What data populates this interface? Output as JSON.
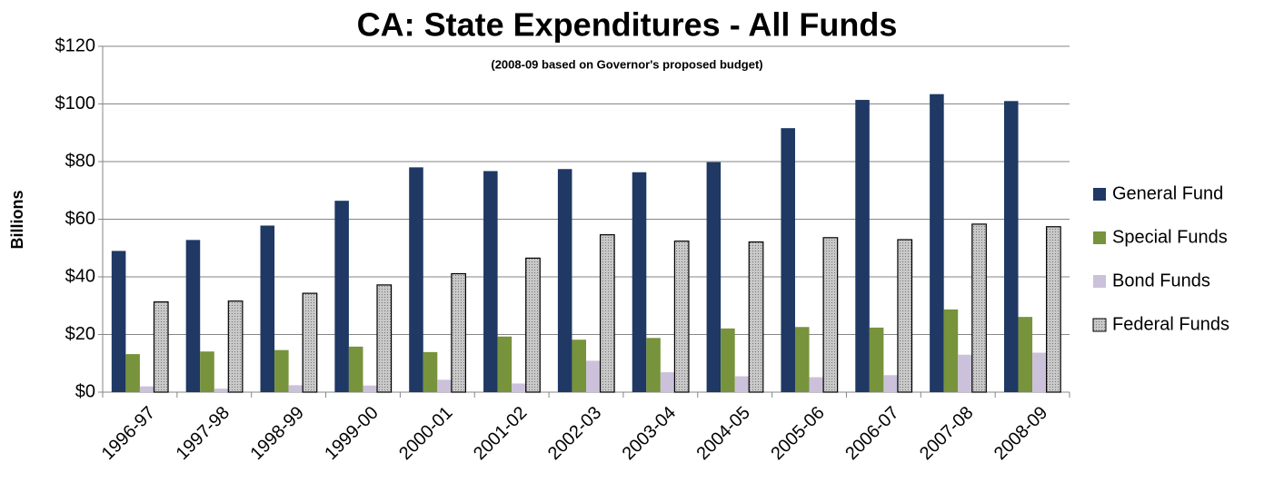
{
  "chart_data": {
    "type": "bar",
    "title": "CA: State Expenditures - All Funds",
    "subtitle": "(2008-09 based on Governor's proposed budget)",
    "y_label": "Billions",
    "categories": [
      "1996-97",
      "1997-98",
      "1998-99",
      "1999-00",
      "2000-01",
      "2001-02",
      "2002-03",
      "2003-04",
      "2004-05",
      "2005-06",
      "2006-07",
      "2007-08",
      "2008-09"
    ],
    "series": [
      {
        "name": "General Fund",
        "color": "#1f3864",
        "values": [
          49,
          52.8,
          57.8,
          66.4,
          78,
          76.7,
          77.4,
          76.3,
          79.8,
          91.6,
          101.4,
          103.4,
          101
        ]
      },
      {
        "name": "Special Funds",
        "color": "#77933c",
        "values": [
          13.2,
          14.1,
          14.6,
          15.8,
          13.9,
          19.3,
          18.2,
          18.8,
          22.1,
          22.6,
          22.4,
          28.7,
          26.1
        ]
      },
      {
        "name": "Bond Funds",
        "color": "#ccc1da",
        "values": [
          2,
          1.2,
          2.4,
          2.3,
          4.3,
          3,
          10.9,
          6.9,
          5.5,
          5.2,
          5.9,
          13,
          13.7
        ]
      },
      {
        "name": "Federal Funds",
        "color": "#c8c8c8",
        "values": [
          31.3,
          31.6,
          34.3,
          37.2,
          41.1,
          46.5,
          54.6,
          52.4,
          52.1,
          53.6,
          52.9,
          58.3,
          57.4
        ]
      }
    ],
    "ylim": [
      0,
      120
    ],
    "yticks": [
      {
        "value": 0,
        "label": "$0"
      },
      {
        "value": 20,
        "label": "$20"
      },
      {
        "value": 40,
        "label": "$40"
      },
      {
        "value": 60,
        "label": "$60"
      },
      {
        "value": 80,
        "label": "$80"
      },
      {
        "value": 100,
        "label": "$100"
      },
      {
        "value": 120,
        "label": "$120"
      }
    ],
    "grid": true,
    "legend": "right"
  }
}
